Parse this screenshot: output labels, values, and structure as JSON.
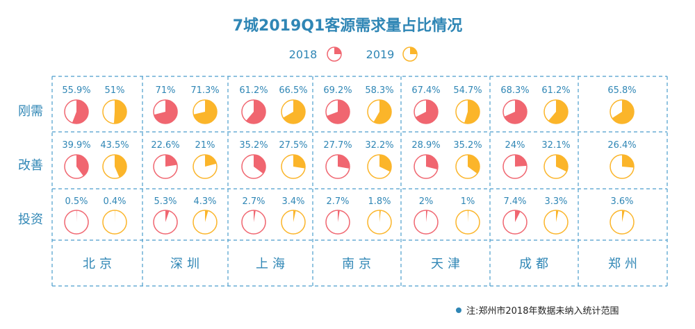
{
  "chart_data": {
    "type": "pie",
    "title": "7城2019Q1客源需求量占比情况",
    "legend": [
      {
        "name": "2018",
        "color": "#f06670"
      },
      {
        "name": "2019",
        "color": "#fbb52a"
      }
    ],
    "rows": [
      "刚需",
      "改善",
      "投资"
    ],
    "cities": [
      {
        "name": "北京",
        "2018": [
          55.9,
          39.9,
          0.5
        ],
        "2019": [
          51,
          43.5,
          0.4
        ],
        "labels2018": [
          "55.9%",
          "39.9%",
          "0.5%"
        ],
        "labels2019": [
          "51%",
          "43.5%",
          "0.4%"
        ]
      },
      {
        "name": "深圳",
        "2018": [
          71,
          22.6,
          5.3
        ],
        "2019": [
          71.3,
          21,
          4.3
        ],
        "labels2018": [
          "71%",
          "22.6%",
          "5.3%"
        ],
        "labels2019": [
          "71.3%",
          "21%",
          "4.3%"
        ]
      },
      {
        "name": "上海",
        "2018": [
          61.2,
          35.2,
          2.7
        ],
        "2019": [
          66.5,
          27.5,
          3.4
        ],
        "labels2018": [
          "61.2%",
          "35.2%",
          "2.7%"
        ],
        "labels2019": [
          "66.5%",
          "27.5%",
          "3.4%"
        ]
      },
      {
        "name": "南京",
        "2018": [
          69.2,
          27.7,
          2.7
        ],
        "2019": [
          58.3,
          32.2,
          1.8
        ],
        "labels2018": [
          "69.2%",
          "27.7%",
          "2.7%"
        ],
        "labels2019": [
          "58.3%",
          "32.2%",
          "1.8%"
        ]
      },
      {
        "name": "天津",
        "2018": [
          67.4,
          28.9,
          2
        ],
        "2019": [
          54.7,
          35.2,
          1
        ],
        "labels2018": [
          "67.4%",
          "28.9%",
          "2%"
        ],
        "labels2019": [
          "54.7%",
          "35.2%",
          "1%"
        ]
      },
      {
        "name": "成都",
        "2018": [
          68.3,
          24,
          7.4
        ],
        "2019": [
          61.2,
          32.1,
          3.3
        ],
        "labels2018": [
          "68.3%",
          "24%",
          "7.4%"
        ],
        "labels2019": [
          "61.2%",
          "32.1%",
          "3.3%"
        ]
      },
      {
        "name": "郑州",
        "2018": null,
        "2019": [
          65.8,
          26.4,
          3.6
        ],
        "labels2018": null,
        "labels2019": [
          "65.8%",
          "26.4%",
          "3.6%"
        ]
      }
    ],
    "note": "注:郑州市2018年数据未纳入统计范围"
  },
  "colors": {
    "accent": "#2f86b5",
    "pie2018": "#f06670",
    "pie2019": "#fbb52a",
    "pieBg": "#ffffff"
  }
}
